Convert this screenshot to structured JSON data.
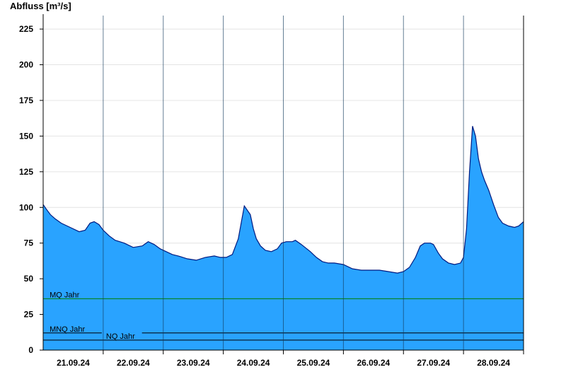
{
  "chart_data": {
    "type": "area",
    "ylabel": "Abfluss [m³/s]",
    "ylim": [
      0,
      230
    ],
    "yticks": [
      0,
      25,
      50,
      75,
      100,
      125,
      150,
      175,
      200,
      225
    ],
    "grid": true,
    "xlim": [
      20.0,
      28.0
    ],
    "day_boundaries": [
      21,
      22,
      23,
      24,
      25,
      26,
      27,
      28
    ],
    "xtick_labels": [
      {
        "x": 20.5,
        "label": "21.09.24"
      },
      {
        "x": 21.5,
        "label": "22.09.24"
      },
      {
        "x": 22.5,
        "label": "23.09.24"
      },
      {
        "x": 23.5,
        "label": "24.09.24"
      },
      {
        "x": 24.5,
        "label": "25.09.24"
      },
      {
        "x": 25.5,
        "label": "26.09.24"
      },
      {
        "x": 26.5,
        "label": "27.09.24"
      },
      {
        "x": 27.5,
        "label": "28.09.24"
      }
    ],
    "colors": {
      "area": "#29a3ff",
      "outline": "#001a80",
      "mq_line": "#008000",
      "nq_line": "#000000"
    },
    "reference_lines": [
      {
        "name": "MQ Jahr",
        "value": 36,
        "color": "#008000",
        "label_x": 20.06
      },
      {
        "name": "MNQ Jahr",
        "value": 12,
        "color": "#000000",
        "label_x": 20.06
      },
      {
        "name": "NQ Jahr",
        "value": 7,
        "color": "#000000",
        "label_x": 21.0
      }
    ],
    "series": [
      {
        "x": [
          20.0,
          20.05,
          20.12,
          20.2,
          20.3,
          20.45,
          20.6,
          20.7,
          20.78,
          20.85,
          20.93,
          21.0,
          21.1,
          21.2,
          21.35,
          21.5,
          21.65,
          21.75,
          21.85,
          21.95,
          22.05,
          22.15,
          22.25,
          22.4,
          22.55,
          22.7,
          22.85,
          22.95,
          23.05,
          23.15,
          23.25,
          23.35,
          23.45,
          23.5,
          23.55,
          23.62,
          23.7,
          23.8,
          23.9,
          23.97,
          24.05,
          24.15,
          24.2,
          24.3,
          24.45,
          24.55,
          24.65,
          24.75,
          24.85,
          25.0,
          25.15,
          25.3,
          25.45,
          25.6,
          25.75,
          25.9,
          26.0,
          26.1,
          26.2,
          26.28,
          26.35,
          26.45,
          26.5,
          26.58,
          26.65,
          26.75,
          26.85,
          26.95,
          27.0,
          27.05,
          27.1,
          27.15,
          27.2,
          27.25,
          27.3,
          27.35,
          27.42,
          27.5,
          27.58,
          27.65,
          27.75,
          27.85,
          27.92,
          28.0
        ],
        "y": [
          102,
          99,
          95,
          92,
          89,
          86,
          83,
          84,
          89,
          90,
          88,
          84,
          80,
          77,
          75,
          72,
          73,
          76,
          74,
          71,
          69,
          67,
          66,
          64,
          63,
          65,
          66,
          65,
          65,
          67,
          78,
          101,
          95,
          85,
          78,
          73,
          70,
          69,
          71,
          75,
          76,
          76,
          77,
          74,
          69,
          65,
          62,
          61,
          61,
          60,
          57,
          56,
          56,
          56,
          55,
          54,
          55,
          58,
          65,
          73,
          75,
          75,
          74,
          68,
          64,
          61,
          60,
          61,
          65,
          85,
          125,
          157,
          150,
          134,
          125,
          119,
          112,
          102,
          93,
          89,
          87,
          86,
          87,
          90
        ]
      }
    ]
  }
}
